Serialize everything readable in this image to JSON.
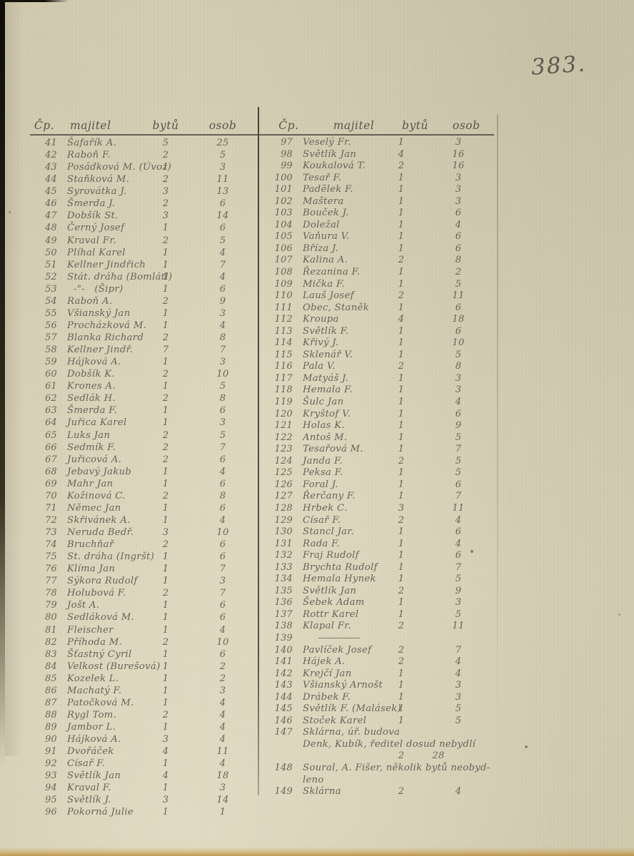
{
  "page_number": "383.",
  "table": {
    "headers": {
      "cp": "Čp.",
      "owner": "majitel",
      "flats": "bytů",
      "persons": "osob"
    },
    "left_rows": [
      {
        "cp": "41",
        "owner": "Šafařík A.",
        "flats": "5",
        "persons": "25"
      },
      {
        "cp": "42",
        "owner": "Raboň F.",
        "flats": "2",
        "persons": "5"
      },
      {
        "cp": "43",
        "owner": "Posádková M. (Úvoz)",
        "flats": "1",
        "persons": "3"
      },
      {
        "cp": "44",
        "owner": "Staňková M.",
        "flats": "2",
        "persons": "11"
      },
      {
        "cp": "45",
        "owner": "Syrovátka J.",
        "flats": "3",
        "persons": "13"
      },
      {
        "cp": "46",
        "owner": "Šmerda J.",
        "flats": "2",
        "persons": "6"
      },
      {
        "cp": "47",
        "owner": "Dobšík St.",
        "flats": "3",
        "persons": "14"
      },
      {
        "cp": "48",
        "owner": "Černý Josef",
        "flats": "1",
        "persons": "6"
      },
      {
        "cp": "49",
        "owner": "Kraval Fr.",
        "flats": "2",
        "persons": "5"
      },
      {
        "cp": "50",
        "owner": "Plíhal Karel",
        "flats": "1",
        "persons": "4"
      },
      {
        "cp": "51",
        "owner": "Kellner Jindřich",
        "flats": "1",
        "persons": "7"
      },
      {
        "cp": "52",
        "owner": "Stát. dráha (Bomlátl)",
        "flats": "1",
        "persons": "4"
      },
      {
        "cp": "53",
        "owner": "  -\"-   (Šipr)",
        "flats": "1",
        "persons": "6"
      },
      {
        "cp": "54",
        "owner": "Raboň A.",
        "flats": "2",
        "persons": "9"
      },
      {
        "cp": "55",
        "owner": "Všianský Jan",
        "flats": "1",
        "persons": "3"
      },
      {
        "cp": "56",
        "owner": "Procházková M.",
        "flats": "1",
        "persons": "4"
      },
      {
        "cp": "57",
        "owner": "Blanka Richard",
        "flats": "2",
        "persons": "8"
      },
      {
        "cp": "58",
        "owner": "Kellner Jindř.",
        "flats": "7",
        "persons": "7"
      },
      {
        "cp": "59",
        "owner": "Hájková A.",
        "flats": "1",
        "persons": "3"
      },
      {
        "cp": "60",
        "owner": "Dobšík K.",
        "flats": "2",
        "persons": "10"
      },
      {
        "cp": "61",
        "owner": "Krones A.",
        "flats": "1",
        "persons": "5"
      },
      {
        "cp": "62",
        "owner": "Sedlák H.",
        "flats": "2",
        "persons": "8"
      },
      {
        "cp": "63",
        "owner": "Šmerda F.",
        "flats": "1",
        "persons": "6"
      },
      {
        "cp": "64",
        "owner": "Juřica Karel",
        "flats": "1",
        "persons": "3"
      },
      {
        "cp": "65",
        "owner": "Luks Jan",
        "flats": "2",
        "persons": "5"
      },
      {
        "cp": "66",
        "owner": "Sedmík F.",
        "flats": "2",
        "persons": "7"
      },
      {
        "cp": "67",
        "owner": "Juřicová A.",
        "flats": "2",
        "persons": "6"
      },
      {
        "cp": "68",
        "owner": "Jebavý Jakub",
        "flats": "1",
        "persons": "4"
      },
      {
        "cp": "69",
        "owner": "Mahr Jan",
        "flats": "1",
        "persons": "6"
      },
      {
        "cp": "70",
        "owner": "Kožinová C.",
        "flats": "2",
        "persons": "8"
      },
      {
        "cp": "71",
        "owner": "Němec Jan",
        "flats": "1",
        "persons": "6"
      },
      {
        "cp": "72",
        "owner": "Skřivánek A.",
        "flats": "1",
        "persons": "4"
      },
      {
        "cp": "73",
        "owner": "Neruda Bedř.",
        "flats": "3",
        "persons": "10"
      },
      {
        "cp": "74",
        "owner": "Bruchňař",
        "flats": "2",
        "persons": "6"
      },
      {
        "cp": "75",
        "owner": "St. dráha (Ingršt)",
        "flats": "1",
        "persons": "6"
      },
      {
        "cp": "76",
        "owner": "Klíma Jan",
        "flats": "1",
        "persons": "7"
      },
      {
        "cp": "77",
        "owner": "Sýkora Rudolf",
        "flats": "1",
        "persons": "3"
      },
      {
        "cp": "78",
        "owner": "Holubová F.",
        "flats": "2",
        "persons": "7"
      },
      {
        "cp": "79",
        "owner": "Jošt A.",
        "flats": "1",
        "persons": "6"
      },
      {
        "cp": "80",
        "owner": "Sedláková M.",
        "flats": "1",
        "persons": "6"
      },
      {
        "cp": "81",
        "owner": "Fleischer",
        "flats": "1",
        "persons": "4"
      },
      {
        "cp": "82",
        "owner": "Příhoda M.",
        "flats": "2",
        "persons": "10"
      },
      {
        "cp": "83",
        "owner": "Šťastný Cyril",
        "flats": "1",
        "persons": "6"
      },
      {
        "cp": "84",
        "owner": "Velkost (Burešová)",
        "flats": "1",
        "persons": "2"
      },
      {
        "cp": "85",
        "owner": "Kozelek L.",
        "flats": "1",
        "persons": "2"
      },
      {
        "cp": "86",
        "owner": "Machatý F.",
        "flats": "1",
        "persons": "3"
      },
      {
        "cp": "87",
        "owner": "Patočková M.",
        "flats": "1",
        "persons": "4"
      },
      {
        "cp": "88",
        "owner": "Rygl Tom.",
        "flats": "2",
        "persons": "4"
      },
      {
        "cp": "89",
        "owner": "Jambor L.",
        "flats": "1",
        "persons": "4"
      },
      {
        "cp": "90",
        "owner": "Hájková A.",
        "flats": "3",
        "persons": "4"
      },
      {
        "cp": "91",
        "owner": "Dvořáček",
        "flats": "4",
        "persons": "11"
      },
      {
        "cp": "92",
        "owner": "Císař F.",
        "flats": "1",
        "persons": "4"
      },
      {
        "cp": "93",
        "owner": "Světlík Jan",
        "flats": "4",
        "persons": "18"
      },
      {
        "cp": "94",
        "owner": "Kraval F.",
        "flats": "1",
        "persons": "3"
      },
      {
        "cp": "95",
        "owner": "Světlík J.",
        "flats": "3",
        "persons": "14"
      },
      {
        "cp": "96",
        "owner": "Pokorná Julie",
        "flats": "1",
        "persons": "1"
      }
    ],
    "right_rows": [
      {
        "cp": "97",
        "owner": "Veselý Fr.",
        "flats": "1",
        "persons": "3"
      },
      {
        "cp": "98",
        "owner": "Světlík Jan",
        "flats": "4",
        "persons": "16"
      },
      {
        "cp": "99",
        "owner": "Koukalová T.",
        "flats": "2",
        "persons": "16"
      },
      {
        "cp": "100",
        "owner": "Tesař F.",
        "flats": "1",
        "persons": "3"
      },
      {
        "cp": "101",
        "owner": "Padělek F.",
        "flats": "1",
        "persons": "3"
      },
      {
        "cp": "102",
        "owner": "Maštera",
        "flats": "1",
        "persons": "3"
      },
      {
        "cp": "103",
        "owner": "Bouček J.",
        "flats": "1",
        "persons": "6"
      },
      {
        "cp": "104",
        "owner": "Doležal",
        "flats": "1",
        "persons": "4"
      },
      {
        "cp": "105",
        "owner": "Vaňura V.",
        "flats": "1",
        "persons": "6"
      },
      {
        "cp": "106",
        "owner": "Bříza J.",
        "flats": "1",
        "persons": "6"
      },
      {
        "cp": "107",
        "owner": "Kalina A.",
        "flats": "2",
        "persons": "8"
      },
      {
        "cp": "108",
        "owner": "Řezanina F.",
        "flats": "1",
        "persons": "2"
      },
      {
        "cp": "109",
        "owner": "Mička F.",
        "flats": "1",
        "persons": "5"
      },
      {
        "cp": "110",
        "owner": "Lauš Josef",
        "flats": "2",
        "persons": "11"
      },
      {
        "cp": "111",
        "owner": "Obec, Staněk",
        "flats": "1",
        "persons": "6"
      },
      {
        "cp": "112",
        "owner": "Kroupa",
        "flats": "4",
        "persons": "18"
      },
      {
        "cp": "113",
        "owner": "Světlík F.",
        "flats": "1",
        "persons": "6"
      },
      {
        "cp": "114",
        "owner": "Křivý J.",
        "flats": "1",
        "persons": "10"
      },
      {
        "cp": "115",
        "owner": "Sklenář V.",
        "flats": "1",
        "persons": "5"
      },
      {
        "cp": "116",
        "owner": "Pala V.",
        "flats": "2",
        "persons": "8"
      },
      {
        "cp": "117",
        "owner": "Matyáš J.",
        "flats": "1",
        "persons": "3"
      },
      {
        "cp": "118",
        "owner": "Hemala F.",
        "flats": "1",
        "persons": "3"
      },
      {
        "cp": "119",
        "owner": "Šulc Jan",
        "flats": "1",
        "persons": "4"
      },
      {
        "cp": "120",
        "owner": "Kryštof V.",
        "flats": "1",
        "persons": "6"
      },
      {
        "cp": "121",
        "owner": "Holas K.",
        "flats": "1",
        "persons": "9"
      },
      {
        "cp": "122",
        "owner": "Antoš M.",
        "flats": "1",
        "persons": "5"
      },
      {
        "cp": "123",
        "owner": "Tesařová M.",
        "flats": "1",
        "persons": "7"
      },
      {
        "cp": "124",
        "owner": "Janda F.",
        "flats": "2",
        "persons": "5"
      },
      {
        "cp": "125",
        "owner": "Peksa F.",
        "flats": "1",
        "persons": "5"
      },
      {
        "cp": "126",
        "owner": "Foral J.",
        "flats": "1",
        "persons": "6"
      },
      {
        "cp": "127",
        "owner": "Řerčany F.",
        "flats": "1",
        "persons": "7"
      },
      {
        "cp": "128",
        "owner": "Hrbek C.",
        "flats": "3",
        "persons": "11"
      },
      {
        "cp": "129",
        "owner": "Císař F.",
        "flats": "2",
        "persons": "4"
      },
      {
        "cp": "130",
        "owner": "Stancl Jar.",
        "flats": "1",
        "persons": "6"
      },
      {
        "cp": "131",
        "owner": "Rada F.",
        "flats": "1",
        "persons": "4"
      },
      {
        "cp": "132",
        "owner": "Fraj Rudolf",
        "flats": "1",
        "persons": "6"
      },
      {
        "cp": "133",
        "owner": "Brychta Rudolf",
        "flats": "1",
        "persons": "7"
      },
      {
        "cp": "134",
        "owner": "Hemala Hynek",
        "flats": "1",
        "persons": "5"
      },
      {
        "cp": "135",
        "owner": "Světlík Jan",
        "flats": "2",
        "persons": "9"
      },
      {
        "cp": "136",
        "owner": "Šebek Adam",
        "flats": "1",
        "persons": "3"
      },
      {
        "cp": "137",
        "owner": "Rottr Karel",
        "flats": "1",
        "persons": "5"
      },
      {
        "cp": "138",
        "owner": "Klapal Fr.",
        "flats": "2",
        "persons": "11"
      },
      {
        "cp": "139",
        "owner": "",
        "flats": "",
        "persons": "",
        "dash": true
      },
      {
        "cp": "140",
        "owner": "Pavlíček Josef",
        "flats": "2",
        "persons": "7"
      },
      {
        "cp": "141",
        "owner": "Hájek A.",
        "flats": "2",
        "persons": "4"
      },
      {
        "cp": "142",
        "owner": "Krejčí Jan",
        "flats": "1",
        "persons": "4"
      },
      {
        "cp": "143",
        "owner": "Všianský Arnošt",
        "flats": "1",
        "persons": "3"
      },
      {
        "cp": "144",
        "owner": "Drábek F.",
        "flats": "1",
        "persons": "3"
      },
      {
        "cp": "145",
        "owner": "Světlík F. (Malásek)",
        "flats": "1",
        "persons": "5"
      },
      {
        "cp": "146",
        "owner": "Stoček Karel",
        "flats": "1",
        "persons": "5"
      },
      {
        "cp": "147",
        "owner": "Sklárna, úř. budova",
        "flats": "",
        "persons": ""
      },
      {
        "cp": "",
        "owner": "Denk, Kubík, ředitel dosud nebydlí",
        "flats": "",
        "persons": ""
      },
      {
        "cp": "",
        "owner": "",
        "flats": "2",
        "persons": "28",
        "pshift": true
      },
      {
        "cp": "148",
        "owner": "Soural, A. Fišer, několik bytů neobyd-",
        "flats": "",
        "persons": ""
      },
      {
        "cp": "",
        "owner": "leno",
        "flats": "",
        "persons": ""
      },
      {
        "cp": "149",
        "owner": "Sklárna",
        "flats": "2",
        "persons": "4"
      }
    ]
  }
}
